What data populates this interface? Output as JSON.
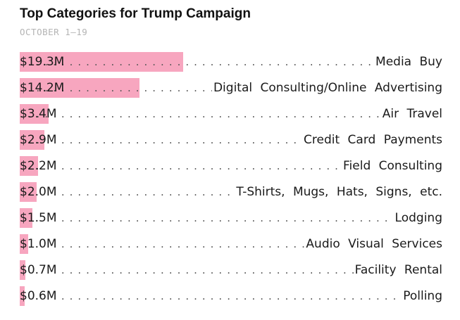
{
  "chart_data": {
    "type": "bar",
    "orientation": "horizontal",
    "title": "Top Categories for Trump Campaign",
    "subtitle": "OCTOBER 1–19",
    "unit": "$M",
    "bar_color": "#f7a6bf",
    "categories": [
      "Media Buy",
      "Digital Consulting/Online Advertising",
      "Air Travel",
      "Credit Card Payments",
      "Field Consulting",
      "T-Shirts, Mugs, Hats, Signs, etc.",
      "Lodging",
      "Audio Visual Services",
      "Facility Rental",
      "Polling"
    ],
    "values": [
      19.3,
      14.2,
      3.4,
      2.9,
      2.2,
      2.0,
      1.5,
      1.0,
      0.7,
      0.6
    ],
    "value_labels": [
      "$19.3M",
      "$14.2M",
      "$3.4M",
      "$2.9M",
      "$2.2M",
      "$2.0M",
      "$1.5M",
      "$1.0M",
      "$0.7M",
      "$0.6M"
    ],
    "xlim": [
      0,
      50
    ],
    "grid": false,
    "legend": "none"
  }
}
